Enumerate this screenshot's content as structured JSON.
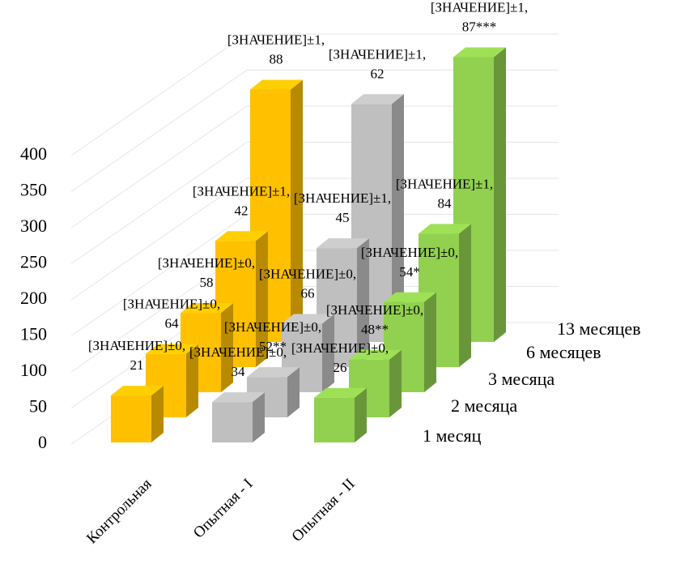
{
  "chart_data": {
    "type": "bar3d",
    "categories": [
      "Контрольная",
      "Опытная - I",
      "Опытная - II"
    ],
    "colors": [
      "#ffc000",
      "#bfbfbf",
      "#92d050"
    ],
    "series": [
      {
        "name": "1 месяц",
        "values": [
          65,
          56,
          62
        ],
        "value_labels": [
          "[ЗНАЧЕНИЕ]±0, 21",
          "[ЗНАЧЕНИЕ]±0, 34",
          "[ЗНАЧЕНИЕ]±0, 26"
        ]
      },
      {
        "name": "2 месяца",
        "values": [
          88,
          56,
          80
        ],
        "value_labels": [
          "[ЗНАЧЕНИЕ]±0, 64",
          "[ЗНАЧЕНИЕ]±0, 52**",
          "[ЗНАЧЕНИЕ]±0, 48**"
        ]
      },
      {
        "name": "3 месяца",
        "values": [
          110,
          95,
          125
        ],
        "value_labels": [
          "[ЗНАЧЕНИЕ]±0, 58",
          "[ЗНАЧЕНИЕ]±0, 66",
          "[ЗНАЧЕНИЕ]±0, 54*"
        ]
      },
      {
        "name": "6 месяцев",
        "values": [
          175,
          165,
          185
        ],
        "value_labels": [
          "[ЗНАЧЕНИЕ]±1, 42",
          "[ЗНАЧЕНИЕ]±1, 45",
          "[ЗНАЧЕНИЕ]±1, 84"
        ]
      },
      {
        "name": "13 месяцев",
        "values": [
          350,
          330,
          395
        ],
        "value_labels": [
          "[ЗНАЧЕНИЕ]±1, 88",
          "[ЗНАЧЕНИЕ]±1, 62",
          "[ЗНАЧЕНИЕ]±1, 87***"
        ]
      }
    ],
    "ylim": [
      0,
      400
    ],
    "yticks": [
      0,
      50,
      100,
      150,
      200,
      250,
      300,
      350,
      400
    ],
    "grid": true
  }
}
